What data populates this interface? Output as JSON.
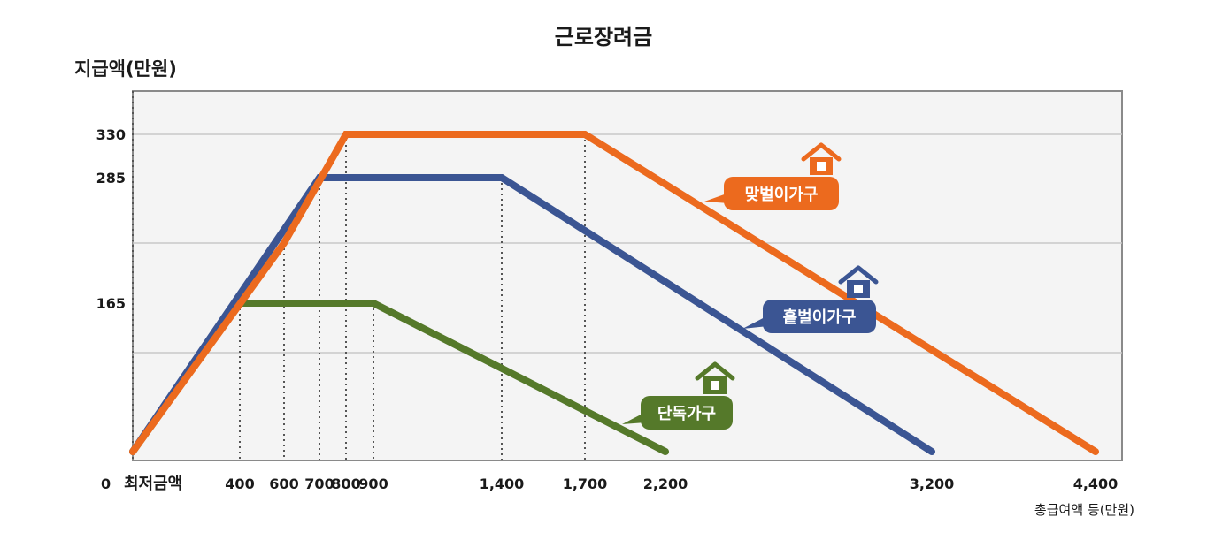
{
  "chart_data": {
    "type": "line",
    "title": "근로장려금",
    "ylabel": "지급액(만원)",
    "xlabel": "총급여액 등(만원)",
    "origin_label": "0",
    "min_label": "최저금액",
    "x_ticks": [
      {
        "value": 400,
        "label": "400"
      },
      {
        "value": 600,
        "label": "600"
      },
      {
        "value": 700,
        "label": "700"
      },
      {
        "value": 800,
        "label": "800"
      },
      {
        "value": 900,
        "label": "900"
      },
      {
        "value": 1400,
        "label": "1,400"
      },
      {
        "value": 1700,
        "label": "1,700"
      },
      {
        "value": 2200,
        "label": "2,200"
      },
      {
        "value": 3200,
        "label": "3,200"
      },
      {
        "value": 4400,
        "label": "4,400"
      }
    ],
    "y_ticks": [
      {
        "value": 165,
        "label": "165"
      },
      {
        "value": 285,
        "label": "285"
      },
      {
        "value": 330,
        "label": "330"
      }
    ],
    "xlim": [
      0,
      4400
    ],
    "ylim": [
      0,
      330
    ],
    "grid": true,
    "series": [
      {
        "name": "단독가구",
        "color": "#55792a",
        "points": [
          [
            0,
            0
          ],
          [
            400,
            165
          ],
          [
            900,
            165
          ],
          [
            2200,
            0
          ]
        ]
      },
      {
        "name": "홑벌이가구",
        "color": "#3b5593",
        "points": [
          [
            0,
            0
          ],
          [
            700,
            285
          ],
          [
            1400,
            285
          ],
          [
            3200,
            0
          ]
        ]
      },
      {
        "name": "맞벌이가구",
        "color": "#ec6a1e",
        "points": [
          [
            0,
            0
          ],
          [
            600,
            230
          ],
          [
            800,
            330
          ],
          [
            1700,
            330
          ],
          [
            4400,
            0
          ]
        ]
      }
    ]
  }
}
